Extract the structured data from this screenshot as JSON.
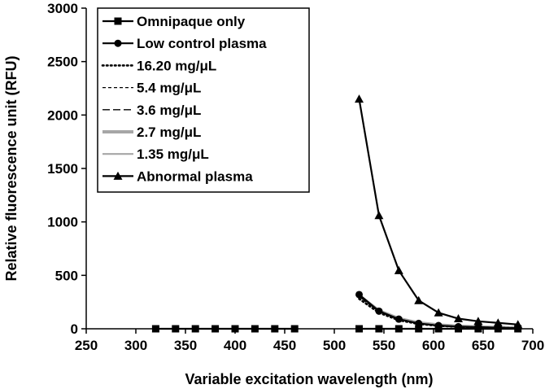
{
  "chart_data": {
    "type": "line",
    "title": "",
    "xlabel": "Variable excitation wavelength (nm)",
    "ylabel": "Relative fluorescence unit (RFU)",
    "xlim": [
      250,
      700
    ],
    "ylim": [
      0,
      3000
    ],
    "xticks": [
      250,
      300,
      350,
      400,
      450,
      500,
      550,
      600,
      650,
      700
    ],
    "yticks": [
      0,
      500,
      1000,
      1500,
      2000,
      2500,
      3000
    ],
    "legend_position": "top-left",
    "series": [
      {
        "name": "Omnipaque only",
        "style": "solid",
        "color": "#000000",
        "marker": "square",
        "x": [
          320,
          340,
          360,
          380,
          400,
          420,
          440,
          460,
          525,
          545,
          565,
          585,
          605,
          625,
          645,
          665,
          685
        ],
        "y": [
          0,
          0,
          0,
          0,
          0,
          0,
          0,
          0,
          0,
          0,
          0,
          0,
          0,
          0,
          0,
          0,
          0
        ]
      },
      {
        "name": "Low control plasma",
        "style": "solid",
        "color": "#000000",
        "marker": "circle",
        "x": [
          525,
          545,
          565,
          585,
          605,
          625,
          645,
          665,
          685
        ],
        "y": [
          320,
          165,
          90,
          50,
          30,
          20,
          15,
          10,
          5
        ]
      },
      {
        "name": "16.20 mg/μL",
        "style": "dotted",
        "color": "#000000",
        "marker": "none",
        "x": [
          525,
          545,
          565,
          585,
          605,
          625,
          645,
          665,
          685
        ],
        "y": [
          280,
          150,
          80,
          45,
          28,
          18,
          12,
          8,
          5
        ]
      },
      {
        "name": "5.4 mg/μL",
        "style": "short-dash",
        "color": "#000000",
        "marker": "none",
        "x": [
          525,
          545,
          565,
          585,
          605,
          625,
          645,
          665,
          685
        ],
        "y": [
          300,
          160,
          88,
          50,
          30,
          20,
          14,
          10,
          6
        ]
      },
      {
        "name": "3.6 mg/μL",
        "style": "long-dash",
        "color": "#000000",
        "marker": "none",
        "x": [
          525,
          545,
          565,
          585,
          605,
          625,
          645,
          665,
          685
        ],
        "y": [
          305,
          162,
          90,
          52,
          32,
          22,
          15,
          10,
          6
        ]
      },
      {
        "name": "2.7 mg/μL",
        "style": "thick-solid",
        "color": "#a6a6a6",
        "marker": "none",
        "x": [
          525,
          545,
          565,
          585,
          605,
          625,
          645,
          665,
          685
        ],
        "y": [
          310,
          168,
          95,
          55,
          35,
          24,
          17,
          12,
          8
        ]
      },
      {
        "name": "1.35 mg/μL",
        "style": "solid",
        "color": "#a6a6a6",
        "marker": "none",
        "x": [
          525,
          545,
          565,
          585,
          605,
          625,
          645,
          665,
          685
        ],
        "y": [
          300,
          160,
          88,
          50,
          32,
          22,
          15,
          10,
          7
        ]
      },
      {
        "name": "Abnormal plasma",
        "style": "solid",
        "color": "#000000",
        "marker": "triangle",
        "x": [
          525,
          545,
          565,
          585,
          605,
          625,
          645,
          665,
          685
        ],
        "y": [
          2150,
          1060,
          545,
          265,
          150,
          95,
          70,
          55,
          40
        ]
      }
    ]
  }
}
